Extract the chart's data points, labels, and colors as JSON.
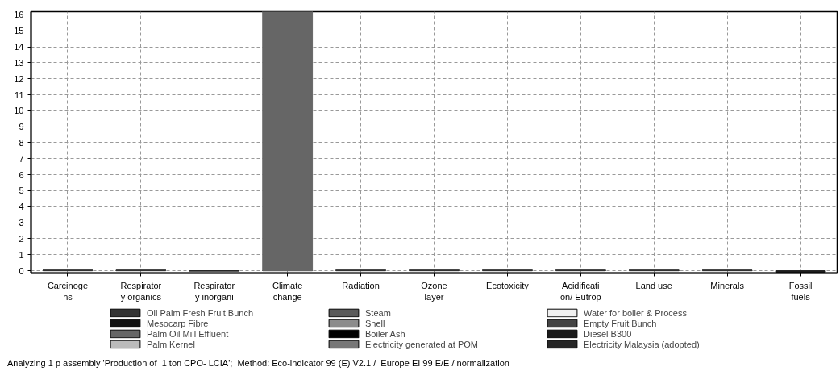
{
  "chart_data": {
    "type": "bar",
    "stacked": true,
    "categories": [
      "Carcinoge\nns",
      "Respirator\ny organics",
      "Respirator\ny inorgani",
      "Climate\nchange",
      "Radiation",
      "Ozone\nlayer",
      "Ecotoxicity",
      "Acidificati\non/ Eutrop",
      "Land use",
      "Minerals",
      "Fossil\nfuels"
    ],
    "series": [
      {
        "name": "Oil Palm Fresh Fruit Bunch",
        "color": "#333333",
        "values": [
          0,
          0,
          0,
          0,
          0,
          0,
          0,
          0,
          0,
          0,
          0
        ]
      },
      {
        "name": "Steam",
        "color": "#5a5a5a",
        "values": [
          0,
          0,
          0,
          0,
          0,
          0,
          0,
          0,
          0,
          0,
          0
        ]
      },
      {
        "name": "Water for boiler & Process",
        "color": "#f0f0f0",
        "values": [
          0,
          0,
          0,
          0,
          0,
          0,
          0,
          0,
          0,
          0,
          0
        ]
      },
      {
        "name": "Mesocarp Fibre",
        "color": "#111111",
        "values": [
          0,
          0,
          0,
          0,
          0,
          0,
          0,
          0,
          0,
          0,
          0
        ]
      },
      {
        "name": "Shell",
        "color": "#8c8c8c",
        "values": [
          0,
          0,
          0,
          0,
          0,
          0,
          0,
          0,
          0,
          0,
          0
        ]
      },
      {
        "name": "Empty Fruit Bunch",
        "color": "#444444",
        "values": [
          0,
          0,
          0,
          0,
          0,
          0,
          0,
          0,
          0,
          0,
          0
        ]
      },
      {
        "name": "Palm Oil Mill Effluent",
        "color": "#666666",
        "values": [
          0.02,
          0.02,
          -0.05,
          16.2,
          0.02,
          0.02,
          0.02,
          0.02,
          0.02,
          0.02,
          0
        ]
      },
      {
        "name": "Boiler Ash",
        "color": "#000000",
        "values": [
          0,
          0,
          0,
          0,
          0,
          0,
          0,
          0,
          0,
          0,
          0
        ]
      },
      {
        "name": "Diesel B300",
        "color": "#1a1a1a",
        "values": [
          0,
          0,
          0,
          0,
          0,
          0,
          0,
          0,
          0,
          0,
          -0.1
        ]
      },
      {
        "name": "Palm Kernel",
        "color": "#bbbbbb",
        "values": [
          0,
          0,
          0,
          0,
          0,
          0,
          0,
          0,
          0,
          0,
          0
        ]
      },
      {
        "name": "Electricity generated at POM",
        "color": "#777777",
        "values": [
          0,
          0,
          0,
          0,
          0,
          0,
          0,
          0,
          0,
          0,
          0
        ]
      },
      {
        "name": "Electricity Malaysia (adopted)",
        "color": "#262626",
        "values": [
          0,
          0,
          0,
          0,
          0,
          0,
          0,
          0,
          0,
          0,
          0
        ]
      }
    ],
    "ylim": [
      -0.15,
      16.2
    ],
    "yticks": [
      0,
      1,
      2,
      3,
      4,
      5,
      6,
      7,
      8,
      9,
      10,
      11,
      12,
      13,
      14,
      15,
      16
    ],
    "grid": true,
    "legend": "bottom",
    "annotations": [
      "Analyzing 1 p assembly 'Production of  1 ton CPO- LCIA';  Method: Eco-indicator 99 (E) V2.1 /  Europe EI 99 E/E / normalization"
    ]
  }
}
